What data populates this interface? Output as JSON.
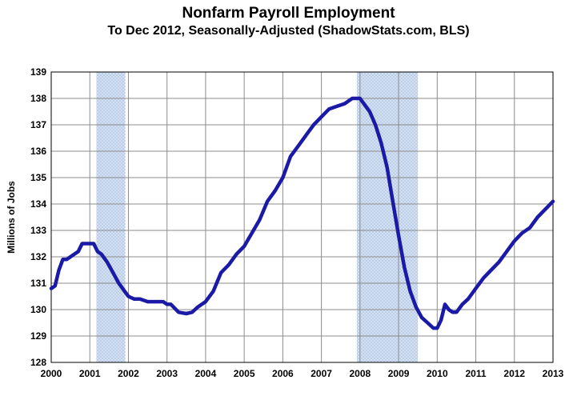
{
  "chart_data": {
    "type": "line",
    "title": "Nonfarm Payroll Employment",
    "subtitle": "To Dec 2012, Seasonally-Adjusted (ShadowStats.com, BLS)",
    "xlabel": "",
    "ylabel": "Millions of Jobs",
    "xlim": [
      2000,
      2013
    ],
    "ylim": [
      128,
      139
    ],
    "x_ticks": [
      "2000",
      "2001",
      "2002",
      "2003",
      "2004",
      "2005",
      "2006",
      "2007",
      "2008",
      "2009",
      "2010",
      "2011",
      "2012",
      "2013"
    ],
    "y_ticks": [
      "128",
      "129",
      "130",
      "131",
      "132",
      "133",
      "134",
      "135",
      "136",
      "137",
      "138",
      "139"
    ],
    "grid": true,
    "line_color": "#1a1aa6",
    "recession_color": "#b8cde8",
    "recessions": [
      [
        2001.17,
        2001.92
      ],
      [
        2007.92,
        2009.5
      ]
    ],
    "series": [
      {
        "name": "",
        "x": [
          2000.0,
          2000.1,
          2000.2,
          2000.3,
          2000.4,
          2000.5,
          2000.6,
          2000.7,
          2000.8,
          2000.9,
          2001.0,
          2001.1,
          2001.2,
          2001.3,
          2001.45,
          2001.6,
          2001.75,
          2001.9,
          2002.0,
          2002.15,
          2002.3,
          2002.5,
          2002.7,
          2002.9,
          2003.0,
          2003.1,
          2003.3,
          2003.5,
          2003.65,
          2003.8,
          2004.0,
          2004.2,
          2004.4,
          2004.6,
          2004.8,
          2005.0,
          2005.2,
          2005.4,
          2005.6,
          2005.8,
          2006.0,
          2006.2,
          2006.4,
          2006.6,
          2006.8,
          2007.0,
          2007.2,
          2007.4,
          2007.6,
          2007.8,
          2008.0,
          2008.1,
          2008.25,
          2008.4,
          2008.55,
          2008.7,
          2008.85,
          2009.0,
          2009.15,
          2009.3,
          2009.45,
          2009.6,
          2009.75,
          2009.9,
          2010.0,
          2010.1,
          2010.2,
          2010.3,
          2010.4,
          2010.5,
          2010.65,
          2010.8,
          2011.0,
          2011.2,
          2011.4,
          2011.6,
          2011.8,
          2012.0,
          2012.2,
          2012.4,
          2012.6,
          2012.8,
          2013.0
        ],
        "values": [
          130.8,
          130.9,
          131.5,
          131.9,
          131.9,
          132.0,
          132.1,
          132.2,
          132.5,
          132.5,
          132.5,
          132.5,
          132.2,
          132.1,
          131.8,
          131.4,
          131.0,
          130.7,
          130.5,
          130.4,
          130.4,
          130.3,
          130.3,
          130.3,
          130.2,
          130.2,
          129.9,
          129.85,
          129.9,
          130.1,
          130.3,
          130.7,
          131.4,
          131.7,
          132.1,
          132.4,
          132.9,
          133.4,
          134.1,
          134.5,
          135.0,
          135.8,
          136.2,
          136.6,
          137.0,
          137.3,
          137.6,
          137.7,
          137.8,
          138.0,
          138.0,
          137.8,
          137.5,
          137.0,
          136.3,
          135.4,
          134.1,
          132.8,
          131.6,
          130.7,
          130.1,
          129.7,
          129.5,
          129.3,
          129.3,
          129.6,
          130.2,
          130.0,
          129.9,
          129.9,
          130.2,
          130.4,
          130.8,
          131.2,
          131.5,
          131.8,
          132.2,
          132.6,
          132.9,
          133.1,
          133.5,
          133.8,
          134.1
        ]
      }
    ]
  }
}
